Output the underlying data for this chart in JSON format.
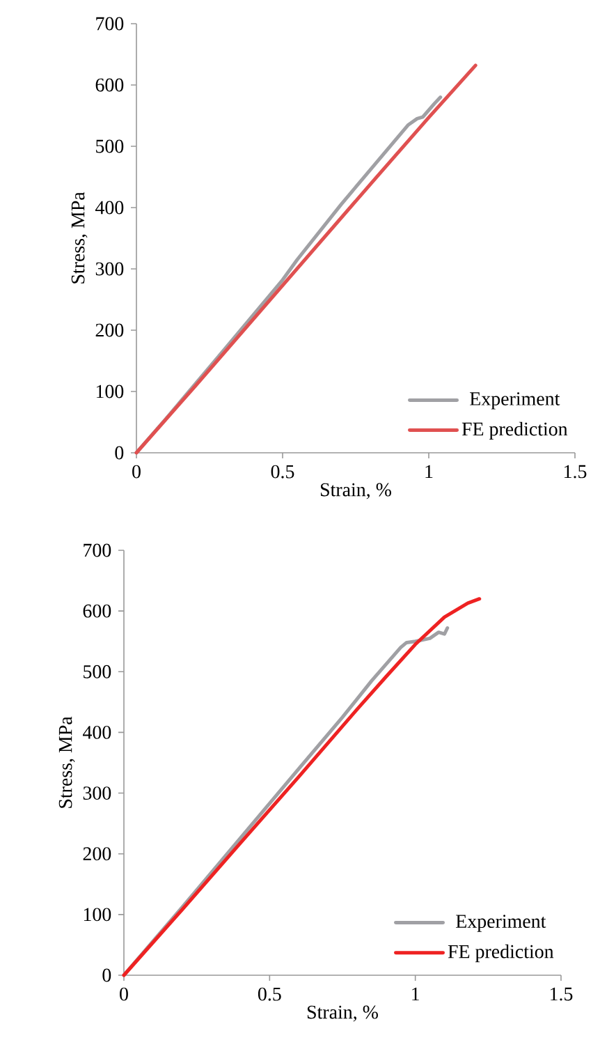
{
  "chart_data": [
    {
      "type": "line",
      "xlabel": "Strain, %",
      "ylabel": "Stress, MPa",
      "xlim": [
        0,
        1.5
      ],
      "ylim": [
        0,
        700
      ],
      "xticks": [
        0,
        0.5,
        1,
        1.5
      ],
      "yticks": [
        0,
        100,
        200,
        300,
        400,
        500,
        600,
        700
      ],
      "legend": "bottom right",
      "grid": false,
      "marker": "none",
      "line_style": "solid",
      "series": [
        {
          "name": "Experiment",
          "color": "#a0a0a4",
          "x": [
            0,
            0.1,
            0.3,
            0.5,
            0.55,
            0.7,
            0.85,
            0.93,
            0.96,
            0.98,
            1.02,
            1.04
          ],
          "values": [
            0,
            55,
            168,
            282,
            315,
            405,
            490,
            535,
            545,
            548,
            570,
            580
          ]
        },
        {
          "name": "FE prediction",
          "color": "#e05050",
          "x": [
            0,
            0.2,
            0.4,
            0.6,
            0.8,
            1.0,
            1.16
          ],
          "values": [
            0,
            108,
            218,
            328,
            438,
            547,
            632
          ]
        }
      ]
    },
    {
      "type": "line",
      "xlabel": "Strain, %",
      "ylabel": "Stress, MPa",
      "xlim": [
        0,
        1.5
      ],
      "ylim": [
        0,
        700
      ],
      "xticks": [
        0,
        0.5,
        1,
        1.5
      ],
      "yticks": [
        0,
        100,
        200,
        300,
        400,
        500,
        600,
        700
      ],
      "legend": "bottom right",
      "grid": false,
      "marker": "none",
      "line_style": "solid",
      "series": [
        {
          "name": "Experiment",
          "color": "#a0a0a4",
          "x": [
            0,
            0.2,
            0.4,
            0.6,
            0.75,
            0.85,
            0.95,
            0.97,
            1.0,
            1.02,
            1.05,
            1.08,
            1.1,
            1.11
          ],
          "values": [
            0,
            112,
            226,
            340,
            425,
            485,
            540,
            548,
            550,
            552,
            555,
            565,
            562,
            572
          ]
        },
        {
          "name": "FE prediction",
          "color": "#ee2222",
          "x": [
            0,
            0.2,
            0.4,
            0.6,
            0.8,
            0.9,
            1.0,
            1.1,
            1.18,
            1.22
          ],
          "values": [
            0,
            108,
            218,
            327,
            438,
            492,
            545,
            590,
            613,
            620
          ]
        }
      ]
    }
  ]
}
